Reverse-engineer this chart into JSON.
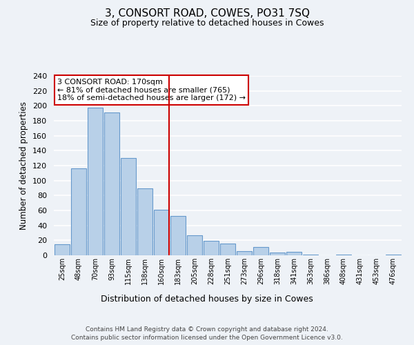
{
  "title": "3, CONSORT ROAD, COWES, PO31 7SQ",
  "subtitle": "Size of property relative to detached houses in Cowes",
  "xlabel": "Distribution of detached houses by size in Cowes",
  "ylabel": "Number of detached properties",
  "categories": [
    "25sqm",
    "48sqm",
    "70sqm",
    "93sqm",
    "115sqm",
    "138sqm",
    "160sqm",
    "183sqm",
    "205sqm",
    "228sqm",
    "251sqm",
    "273sqm",
    "296sqm",
    "318sqm",
    "341sqm",
    "363sqm",
    "386sqm",
    "408sqm",
    "431sqm",
    "453sqm",
    "476sqm"
  ],
  "values": [
    15,
    116,
    198,
    191,
    130,
    90,
    61,
    53,
    27,
    19,
    16,
    6,
    11,
    4,
    5,
    1,
    0,
    1,
    0,
    0,
    1
  ],
  "bar_color": "#b8d0e8",
  "bar_edge_color": "#6699cc",
  "vline_color": "#cc0000",
  "annotation_title": "3 CONSORT ROAD: 170sqm",
  "annotation_line1": "← 81% of detached houses are smaller (765)",
  "annotation_line2": "18% of semi-detached houses are larger (172) →",
  "ylim": [
    0,
    240
  ],
  "yticks": [
    0,
    20,
    40,
    60,
    80,
    100,
    120,
    140,
    160,
    180,
    200,
    220,
    240
  ],
  "footer_line1": "Contains HM Land Registry data © Crown copyright and database right 2024.",
  "footer_line2": "Contains public sector information licensed under the Open Government Licence v3.0.",
  "bg_color": "#eef2f7",
  "grid_color": "#ffffff"
}
